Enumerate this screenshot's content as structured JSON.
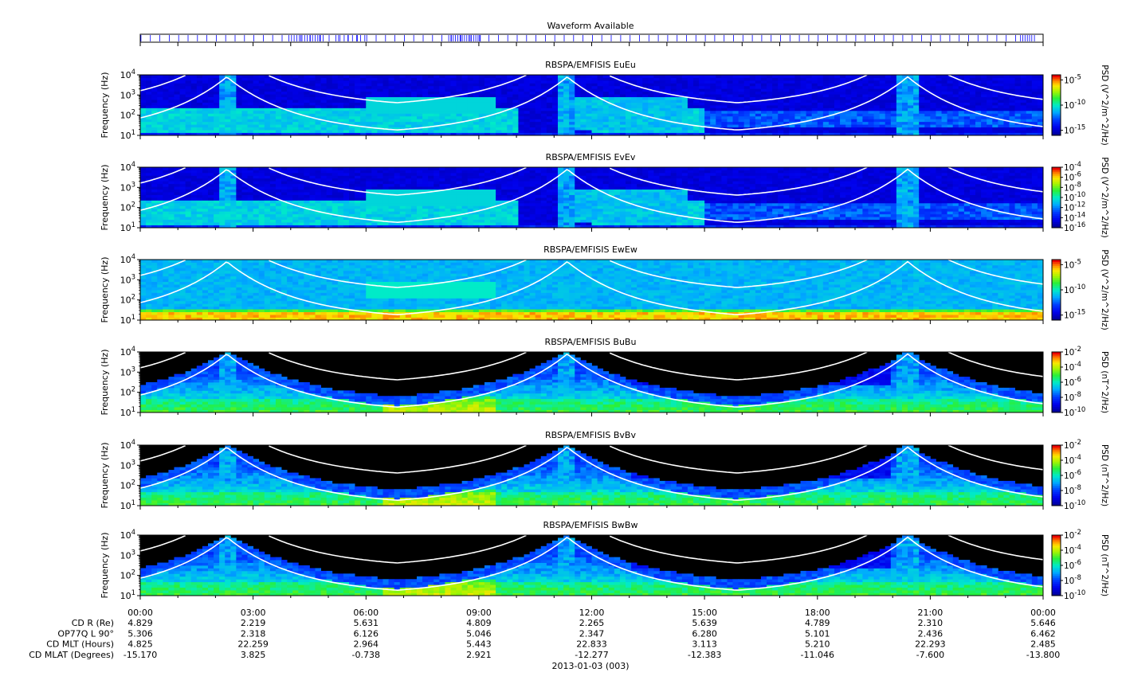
{
  "figure": {
    "date_label": "2013-01-03 (003)"
  },
  "waveform_bar": {
    "title": "Waveform Available",
    "bar_color": "#0000ff"
  },
  "colors": {
    "background_black": "#000000",
    "spectrum_low": "#0000c8",
    "spectrum_high": "#ff0000",
    "curve": "#ffffff"
  },
  "chart_data": [
    {
      "type": "heatmap",
      "title": "RBSPA/EMFISIS  EuEu",
      "ylabel": "Frequency (Hz)",
      "y_scale": "log",
      "ylim": [
        10,
        10000
      ],
      "y_ticks": [
        "10^1",
        "10^2",
        "10^3",
        "10^4"
      ],
      "colorbar_label": "PSD (V^2/m^2/Hz)",
      "colorbar_ticks": [
        "10^-5",
        "10^-10",
        "10^-15"
      ],
      "colorbar_range": [
        -16,
        -4
      ],
      "background": "dark-blue"
    },
    {
      "type": "heatmap",
      "title": "RBSPA/EMFISIS  EvEv",
      "ylabel": "Frequency (Hz)",
      "y_scale": "log",
      "ylim": [
        10,
        10000
      ],
      "y_ticks": [
        "10^1",
        "10^2",
        "10^3",
        "10^4"
      ],
      "colorbar_label": "PSD (V^2/m^2/Hz)",
      "colorbar_ticks": [
        "10^-4",
        "10^-6",
        "10^-8",
        "10^-10",
        "10^-12",
        "10^-14",
        "10^-16"
      ],
      "colorbar_range": [
        -16,
        -4
      ],
      "background": "dark-blue"
    },
    {
      "type": "heatmap",
      "title": "RBSPA/EMFISIS  EwEw",
      "ylabel": "Frequency (Hz)",
      "y_scale": "log",
      "ylim": [
        10,
        10000
      ],
      "y_ticks": [
        "10^1",
        "10^2",
        "10^3",
        "10^4"
      ],
      "colorbar_label": "PSD (V^2/m^2/Hz)",
      "colorbar_ticks": [
        "10^-5",
        "10^-10",
        "10^-15"
      ],
      "colorbar_range": [
        -16,
        -4
      ],
      "background": "light-blue"
    },
    {
      "type": "heatmap",
      "title": "RBSPA/EMFISIS  BuBu",
      "ylabel": "Frequency (Hz)",
      "y_scale": "log",
      "ylim": [
        10,
        10000
      ],
      "y_ticks": [
        "10^1",
        "10^2",
        "10^3",
        "10^4"
      ],
      "colorbar_label": "PSD (nT^2/Hz)",
      "colorbar_ticks": [
        "10^-2",
        "10^-4",
        "10^-6",
        "10^-8",
        "10^-10"
      ],
      "colorbar_range": [
        -10,
        -2
      ],
      "background": "black"
    },
    {
      "type": "heatmap",
      "title": "RBSPA/EMFISIS  BvBv",
      "ylabel": "Frequency (Hz)",
      "y_scale": "log",
      "ylim": [
        10,
        10000
      ],
      "y_ticks": [
        "10^1",
        "10^2",
        "10^3",
        "10^4"
      ],
      "colorbar_label": "PSD (nT^2/Hz)",
      "colorbar_ticks": [
        "10^-2",
        "10^-4",
        "10^-6",
        "10^-8",
        "10^-10"
      ],
      "colorbar_range": [
        -10,
        -2
      ],
      "background": "black"
    },
    {
      "type": "heatmap",
      "title": "RBSPA/EMFISIS  BwBw",
      "ylabel": "Frequency (Hz)",
      "y_scale": "log",
      "ylim": [
        10,
        10000
      ],
      "y_ticks": [
        "10^1",
        "10^2",
        "10^3",
        "10^4"
      ],
      "colorbar_label": "PSD (nT^2/Hz)",
      "colorbar_ticks": [
        "10^-2",
        "10^-4",
        "10^-6",
        "10^-8",
        "10^-10"
      ],
      "colorbar_range": [
        -10,
        -2
      ],
      "background": "black"
    }
  ],
  "x_axis": {
    "range_hours": [
      0,
      24
    ],
    "tick_labels": [
      "00:00",
      "03:00",
      "06:00",
      "09:00",
      "12:00",
      "15:00",
      "18:00",
      "21:00",
      "00:00"
    ]
  },
  "ephemeris": {
    "rows": [
      {
        "label": "CD R (Re)",
        "values": [
          "4.829",
          "2.219",
          "5.631",
          "4.809",
          "2.265",
          "5.639",
          "4.789",
          "2.310",
          "5.646"
        ]
      },
      {
        "label": "OP77Q L 90°",
        "values": [
          "5.306",
          "2.318",
          "6.126",
          "5.046",
          "2.347",
          "6.280",
          "5.101",
          "2.436",
          "6.462"
        ]
      },
      {
        "label": "CD MLT (Hours)",
        "values": [
          "4.825",
          "22.259",
          "2.964",
          "5.443",
          "22.833",
          "3.113",
          "5.210",
          "22.293",
          "2.485"
        ]
      },
      {
        "label": "CD MLAT (Degrees)",
        "values": [
          "-15.170",
          "3.825",
          "-0.738",
          "2.921",
          "-12.277",
          "-12.383",
          "-11.046",
          "-7.600",
          "-13.800"
        ]
      }
    ]
  }
}
